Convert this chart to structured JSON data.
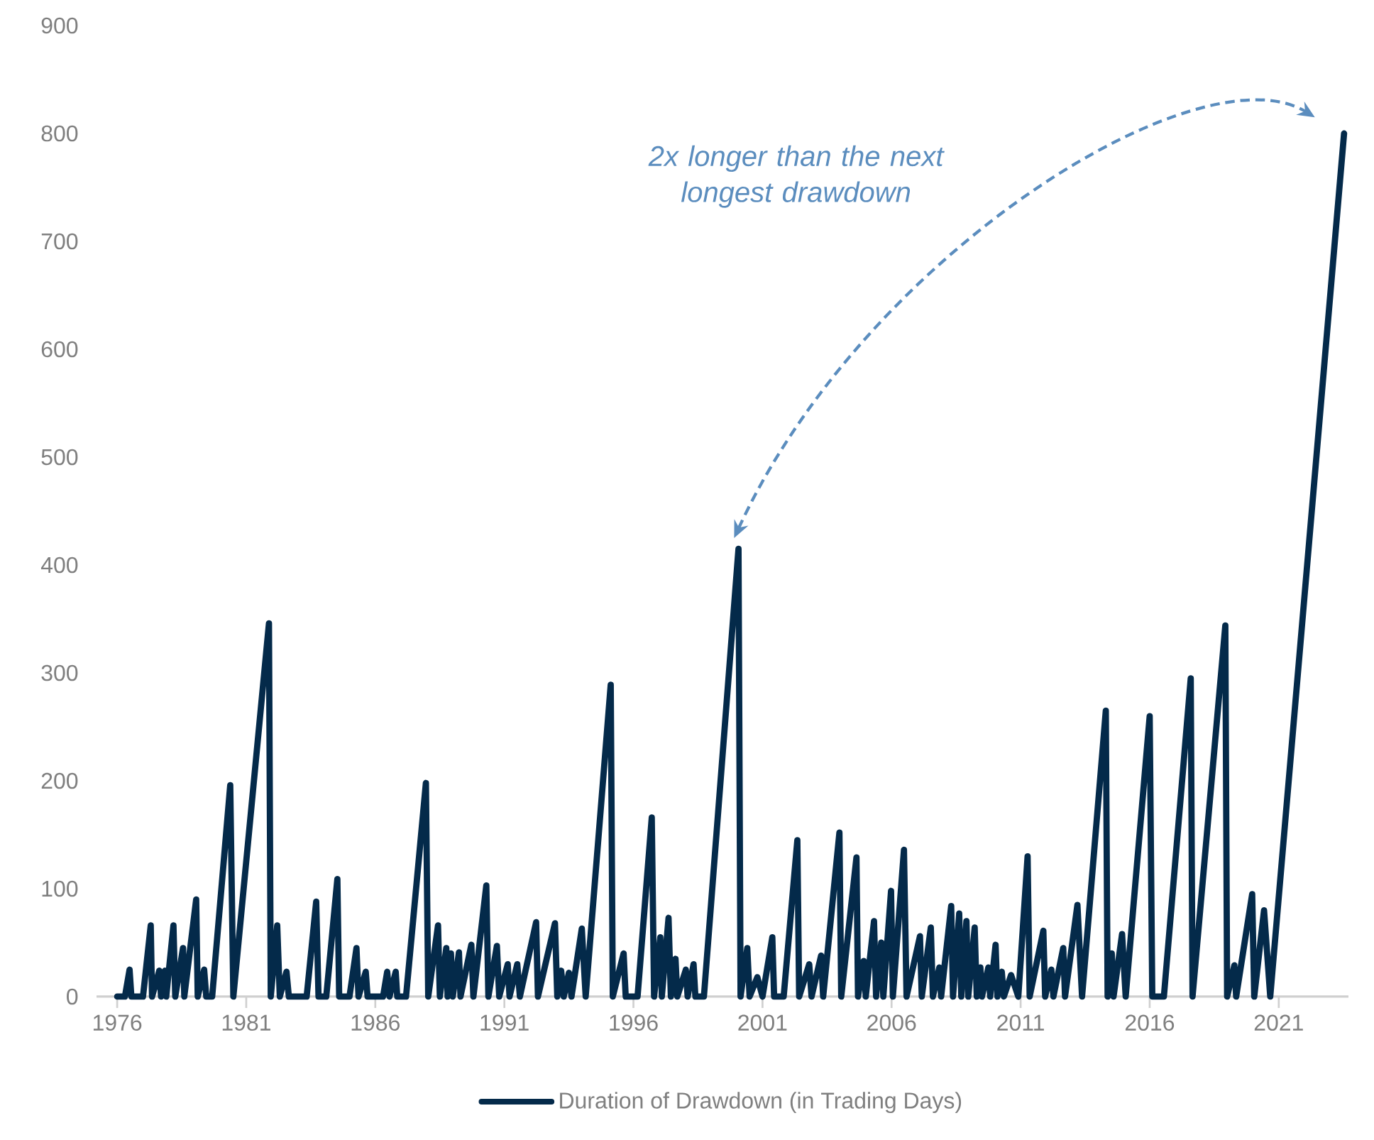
{
  "chart_data": {
    "type": "line",
    "xlim": [
      1975.2,
      2023.7
    ],
    "ylim": [
      0,
      900
    ],
    "xticks": [
      1976,
      1981,
      1986,
      1991,
      1996,
      2001,
      2006,
      2011,
      2016,
      2021
    ],
    "yticks": [
      0,
      100,
      200,
      300,
      400,
      500,
      600,
      700,
      800,
      900
    ],
    "grid": false,
    "legend": "bottom",
    "marker": "none",
    "line_style": "solid",
    "annotations": [
      "2x longer than the next longest drawdown"
    ],
    "series": [
      {
        "name": "Duration of Drawdown (in Trading Days)",
        "color": "#042a4a",
        "x": [
          1976.0,
          1976.3,
          1976.48,
          1976.55,
          1977.0,
          1977.3,
          1977.35,
          1977.63,
          1977.7,
          1977.85,
          1977.9,
          1978.18,
          1978.25,
          1978.55,
          1978.6,
          1979.06,
          1979.12,
          1979.37,
          1979.45,
          1979.68,
          1980.38,
          1980.5,
          1981.88,
          1981.95,
          1982.2,
          1982.3,
          1982.56,
          1982.65,
          1983.34,
          1983.71,
          1983.8,
          1984.1,
          1984.53,
          1984.6,
          1985.0,
          1985.27,
          1985.35,
          1985.63,
          1985.7,
          1986.3,
          1986.46,
          1986.55,
          1986.79,
          1986.85,
          1987.19,
          1987.96,
          1988.05,
          1988.43,
          1988.5,
          1988.75,
          1988.8,
          1988.93,
          1989.0,
          1989.24,
          1989.3,
          1989.72,
          1989.8,
          1990.3,
          1990.38,
          1990.71,
          1990.8,
          1991.13,
          1991.2,
          1991.5,
          1991.6,
          1992.23,
          1992.3,
          1992.96,
          1993.05,
          1993.2,
          1993.3,
          1993.5,
          1993.6,
          1994.0,
          1994.15,
          1995.12,
          1995.2,
          1995.62,
          1995.7,
          1996.16,
          1996.71,
          1996.8,
          1997.04,
          1997.1,
          1997.36,
          1997.45,
          1997.63,
          1997.7,
          1998.03,
          1998.1,
          1998.33,
          1998.4,
          1998.73,
          2000.07,
          2000.15,
          2000.41,
          2000.5,
          2000.8,
          2001.0,
          2001.38,
          2001.45,
          2001.82,
          2002.35,
          2002.42,
          2002.81,
          2002.9,
          2003.27,
          2003.35,
          2003.98,
          2004.05,
          2004.64,
          2004.7,
          2004.92,
          2005.0,
          2005.32,
          2005.4,
          2005.6,
          2005.68,
          2005.98,
          2006.05,
          2006.48,
          2006.58,
          2007.1,
          2007.17,
          2007.52,
          2007.6,
          2007.85,
          2007.92,
          2008.31,
          2008.38,
          2008.62,
          2008.7,
          2008.9,
          2008.97,
          2009.22,
          2009.3,
          2009.44,
          2009.5,
          2009.75,
          2009.82,
          2010.03,
          2010.1,
          2010.27,
          2010.35,
          2010.63,
          2010.91,
          2011.27,
          2011.35,
          2011.88,
          2011.95,
          2012.19,
          2012.27,
          2012.65,
          2012.72,
          2013.2,
          2013.38,
          2014.3,
          2014.37,
          2014.53,
          2014.6,
          2014.93,
          2015.07,
          2016.0,
          2016.1,
          2016.55,
          2017.59,
          2017.66,
          2018.93,
          2019.0,
          2019.28,
          2019.35,
          2019.97,
          2020.05,
          2020.43,
          2020.67,
          2023.53
        ],
        "values": [
          0,
          0,
          25,
          0,
          0,
          66,
          0,
          24,
          0,
          24,
          0,
          66,
          0,
          45,
          0,
          90,
          0,
          25,
          0,
          0,
          196,
          0,
          346,
          0,
          66,
          0,
          23,
          0,
          0,
          88,
          0,
          0,
          109,
          0,
          0,
          45,
          0,
          23,
          0,
          0,
          23,
          0,
          23,
          0,
          0,
          198,
          0,
          66,
          0,
          45,
          0,
          40,
          0,
          41,
          0,
          48,
          0,
          103,
          0,
          47,
          0,
          30,
          0,
          30,
          0,
          69,
          0,
          68,
          0,
          24,
          0,
          22,
          0,
          63,
          0,
          289,
          0,
          40,
          0,
          0,
          166,
          0,
          55,
          0,
          73,
          0,
          35,
          0,
          25,
          0,
          30,
          0,
          0,
          415,
          0,
          45,
          0,
          18,
          0,
          55,
          0,
          0,
          145,
          0,
          30,
          0,
          38,
          0,
          152,
          0,
          129,
          0,
          33,
          0,
          70,
          0,
          50,
          0,
          98,
          0,
          136,
          0,
          56,
          0,
          64,
          0,
          27,
          0,
          84,
          0,
          77,
          0,
          70,
          0,
          64,
          0,
          27,
          0,
          27,
          0,
          48,
          0,
          23,
          0,
          20,
          0,
          130,
          0,
          61,
          0,
          25,
          0,
          45,
          0,
          85,
          0,
          265,
          0,
          40,
          0,
          58,
          0,
          260,
          0,
          0,
          295,
          0,
          344,
          0,
          29,
          0,
          95,
          0,
          80,
          0,
          800
        ]
      }
    ]
  }
}
